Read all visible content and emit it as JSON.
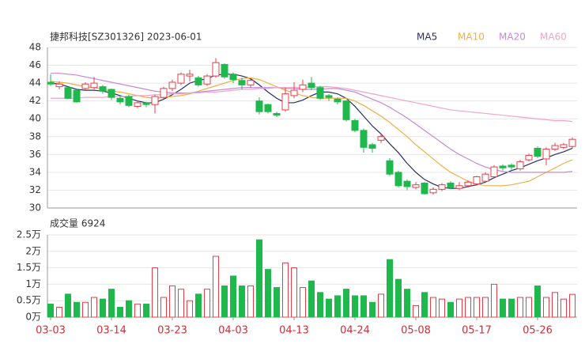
{
  "chart_data": [
    {
      "type": "candlestick",
      "title": "捷邦科技[SZ301326] 2023-06-01",
      "up_color": "#e3404a",
      "down_color": "#1fb84c",
      "open": [
        44.1,
        43.6,
        43.5,
        43.2,
        43.4,
        43.5,
        43.6,
        43.3,
        42.3,
        42.5,
        41.4,
        41.8,
        41.6,
        42.4,
        43.4,
        44.0,
        44.8,
        44.6,
        43.9,
        44.8,
        46.1,
        45.0,
        44.3,
        43.8,
        42.0,
        41.6,
        40.6,
        41.0,
        42.6,
        43.3,
        44.0,
        43.5,
        42.6,
        42.2,
        42.0,
        39.8,
        38.7,
        37.1,
        37.6,
        35.3,
        34.0,
        33.0,
        32.3,
        32.8,
        31.7,
        32.1,
        32.8,
        32.2,
        32.5,
        32.7,
        33.0,
        33.5,
        34.7,
        34.8,
        34.4,
        35.4,
        36.7,
        35.5,
        36.6,
        36.8,
        36.9
      ],
      "high": [
        45.0,
        44.2,
        43.6,
        43.3,
        44.1,
        44.7,
        43.8,
        43.4,
        42.5,
        42.7,
        42.0,
        41.9,
        42.7,
        43.6,
        44.4,
        45.2,
        45.5,
        44.8,
        45.0,
        46.8,
        46.2,
        45.2,
        44.6,
        44.5,
        42.4,
        41.7,
        40.8,
        43.5,
        44.1,
        44.4,
        44.7,
        43.7,
        42.8,
        42.4,
        42.1,
        40.0,
        38.9,
        37.3,
        38.4,
        35.6,
        34.2,
        33.2,
        32.9,
        32.9,
        32.3,
        32.8,
        33.0,
        32.9,
        33.1,
        33.6,
        34.0,
        34.8,
        34.9,
        35.0,
        35.4,
        36.1,
        36.9,
        36.8,
        37.3,
        37.3,
        37.9
      ],
      "low": [
        43.7,
        43.3,
        42.2,
        41.8,
        43.2,
        43.3,
        42.8,
        42.1,
        41.6,
        41.3,
        41.2,
        41.3,
        40.6,
        42.2,
        43.1,
        43.8,
        44.2,
        43.6,
        43.7,
        44.6,
        44.5,
        44.0,
        43.3,
        43.5,
        40.5,
        40.6,
        40.2,
        40.8,
        42.3,
        43.0,
        43.2,
        42.1,
        42.0,
        41.6,
        39.7,
        38.5,
        36.2,
        36.2,
        37.3,
        33.6,
        32.3,
        32.0,
        32.1,
        31.5,
        31.5,
        31.9,
        32.1,
        32.0,
        32.3,
        32.5,
        32.8,
        33.3,
        34.2,
        34.3,
        34.2,
        35.2,
        35.6,
        34.8,
        36.4,
        36.6,
        36.7
      ],
      "close": [
        43.9,
        43.9,
        42.3,
        41.9,
        43.9,
        44.0,
        43.1,
        42.4,
        41.9,
        41.5,
        41.8,
        41.6,
        42.5,
        43.4,
        44.1,
        45.0,
        45.0,
        43.8,
        44.8,
        46.3,
        44.7,
        44.4,
        43.8,
        44.3,
        40.8,
        40.8,
        40.4,
        42.8,
        43.2,
        43.8,
        43.5,
        42.3,
        42.4,
        41.9,
        39.9,
        38.7,
        36.8,
        36.7,
        38.0,
        33.8,
        32.5,
        32.4,
        32.6,
        31.6,
        32.1,
        32.6,
        32.3,
        32.5,
        32.9,
        33.5,
        33.8,
        34.6,
        34.5,
        34.6,
        35.2,
        35.9,
        35.8,
        36.6,
        37.0,
        37.1,
        37.7
      ],
      "series": [
        {
          "name": "MA5",
          "color": "#27305e",
          "values": [
            44.0,
            43.9,
            43.6,
            43.3,
            43.2,
            43.2,
            43.1,
            42.9,
            42.6,
            42.3,
            42.0,
            41.8,
            41.8,
            42.2,
            42.7,
            43.3,
            44.0,
            44.3,
            44.5,
            44.9,
            45.0,
            45.0,
            44.8,
            44.5,
            43.8,
            43.0,
            42.3,
            41.8,
            41.8,
            42.1,
            42.6,
            43.0,
            43.0,
            42.8,
            42.3,
            41.4,
            40.3,
            39.2,
            38.3,
            37.2,
            36.2,
            35.0,
            34.0,
            33.2,
            32.7,
            32.3,
            32.2,
            32.2,
            32.4,
            32.6,
            32.9,
            33.4,
            33.8,
            34.2,
            34.5,
            34.9,
            35.3,
            35.6,
            36.0,
            36.3,
            36.7
          ]
        },
        {
          "name": "MA10",
          "color": "#f0b040",
          "values": [
            44.2,
            44.1,
            44.0,
            43.8,
            43.6,
            43.5,
            43.3,
            43.1,
            43.0,
            42.8,
            42.6,
            42.4,
            42.3,
            42.4,
            42.5,
            42.6,
            42.8,
            43.1,
            43.4,
            43.7,
            44.0,
            44.3,
            44.5,
            44.6,
            44.4,
            44.0,
            43.6,
            43.2,
            42.9,
            42.6,
            42.4,
            42.3,
            42.3,
            42.3,
            42.3,
            42.0,
            41.5,
            40.9,
            40.3,
            39.6,
            38.8,
            38.0,
            37.1,
            36.3,
            35.5,
            34.7,
            34.0,
            33.5,
            33.0,
            32.7,
            32.5,
            32.5,
            32.5,
            32.6,
            32.8,
            33.0,
            33.5,
            34.0,
            34.5,
            35.0,
            35.4
          ]
        },
        {
          "name": "MA20",
          "color": "#c68ad8",
          "values": [
            45.1,
            45.1,
            45.0,
            44.9,
            44.7,
            44.5,
            44.3,
            44.1,
            43.9,
            43.7,
            43.5,
            43.3,
            43.1,
            43.0,
            42.9,
            42.9,
            42.9,
            43.0,
            43.1,
            43.2,
            43.3,
            43.4,
            43.5,
            43.5,
            43.5,
            43.5,
            43.5,
            43.4,
            43.4,
            43.3,
            43.3,
            43.3,
            43.4,
            43.4,
            43.2,
            43.0,
            42.6,
            42.2,
            41.8,
            41.3,
            40.7,
            40.1,
            39.4,
            38.7,
            38.0,
            37.3,
            36.6,
            36.0,
            35.5,
            35.0,
            34.6,
            34.3,
            34.1,
            34.0,
            34.0,
            34.0,
            34.0,
            34.0,
            34.0,
            34.0,
            34.1
          ]
        },
        {
          "name": "MA60",
          "color": "#f2a3c9",
          "values": [
            42.3,
            42.3,
            42.3,
            42.3,
            42.4,
            42.4,
            42.4,
            42.5,
            42.5,
            42.5,
            42.6,
            42.6,
            42.7,
            42.7,
            42.8,
            42.8,
            42.9,
            42.9,
            43.0,
            43.0,
            43.1,
            43.2,
            43.3,
            43.3,
            43.4,
            43.4,
            43.5,
            43.5,
            43.5,
            43.5,
            43.6,
            43.6,
            43.6,
            43.5,
            43.4,
            43.2,
            43.0,
            42.8,
            42.6,
            42.4,
            42.2,
            42.0,
            41.8,
            41.6,
            41.4,
            41.2,
            41.0,
            40.9,
            40.8,
            40.7,
            40.6,
            40.5,
            40.4,
            40.3,
            40.2,
            40.1,
            40.0,
            39.9,
            39.8,
            39.8,
            39.7
          ]
        }
      ],
      "ylim": [
        30,
        48
      ],
      "yticks": [
        30,
        32,
        34,
        36,
        38,
        40,
        42,
        44,
        46,
        48
      ],
      "grid": true
    },
    {
      "type": "bar",
      "title": "成交量 6924",
      "categories": [
        "03-03",
        null,
        null,
        null,
        null,
        null,
        null,
        "03-14",
        null,
        null,
        null,
        null,
        null,
        null,
        "03-23",
        null,
        null,
        null,
        null,
        null,
        null,
        "04-03",
        null,
        null,
        null,
        null,
        null,
        null,
        "04-13",
        null,
        null,
        null,
        null,
        null,
        null,
        "04-24",
        null,
        null,
        null,
        null,
        null,
        null,
        "05-08",
        null,
        null,
        null,
        null,
        null,
        null,
        "05-17",
        null,
        null,
        null,
        null,
        null,
        null,
        "05-26",
        null,
        null,
        null,
        null
      ],
      "values": [
        0.4,
        0.3,
        0.7,
        0.45,
        0.45,
        0.6,
        0.55,
        0.85,
        0.3,
        0.5,
        0.4,
        0.4,
        1.5,
        0.6,
        0.95,
        0.85,
        0.5,
        0.7,
        0.85,
        1.85,
        0.95,
        1.25,
        0.95,
        0.95,
        2.35,
        1.45,
        0.9,
        1.65,
        1.5,
        0.9,
        1.1,
        0.75,
        0.55,
        0.65,
        0.85,
        0.65,
        0.65,
        0.45,
        0.7,
        1.75,
        1.15,
        0.85,
        0.35,
        0.75,
        0.6,
        0.55,
        0.45,
        0.55,
        0.6,
        0.6,
        0.6,
        1.0,
        0.55,
        0.55,
        0.6,
        0.6,
        0.95,
        0.6,
        0.75,
        0.55,
        0.6924
      ],
      "ylim": [
        0,
        2.5
      ],
      "yticks": [
        {
          "value": 0,
          "label": "0万"
        },
        {
          "value": 0.5,
          "label": "0.5万"
        },
        {
          "value": 1,
          "label": "1万"
        },
        {
          "value": 1.5,
          "label": "1.5万"
        },
        {
          "value": 2,
          "label": "2万"
        },
        {
          "value": 2.5,
          "label": "2.5万"
        }
      ],
      "grid": true
    }
  ]
}
